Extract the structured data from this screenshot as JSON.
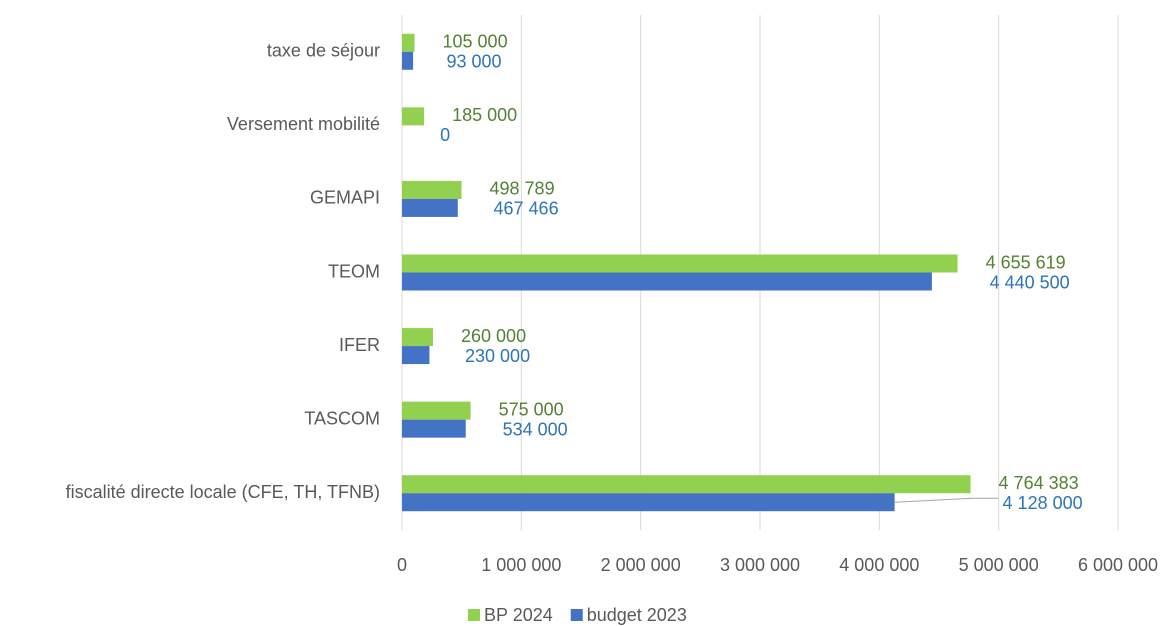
{
  "chart_data": {
    "type": "bar",
    "orientation": "horizontal",
    "categories": [
      "taxe de séjour",
      "Versement mobilité",
      "GEMAPI",
      "TEOM",
      "IFER",
      "TASCOM",
      "fiscalité directe locale (CFE, TH, TFNB)"
    ],
    "series": [
      {
        "name": "BP 2024",
        "color": "#92d050",
        "label_color": "#548235",
        "values": [
          105000,
          185000,
          498789,
          4655619,
          260000,
          575000,
          4764383
        ],
        "value_labels": [
          "105 000",
          "185 000",
          "498 789",
          "4 655 619",
          "260 000",
          "575 000",
          "4 764 383"
        ]
      },
      {
        "name": "budget 2023",
        "color": "#4472c4",
        "label_color": "#2e75b6",
        "values": [
          93000,
          0,
          467466,
          4440500,
          230000,
          534000,
          4128000
        ],
        "value_labels": [
          "93 000",
          "0",
          "467 466",
          "4 440 500",
          "230 000",
          "534 000",
          "4 128 000"
        ]
      }
    ],
    "xlim": [
      0,
      6000000
    ],
    "xticks": [
      0,
      {
        "value": 1000000,
        "label": "1 000 000"
      },
      {
        "value": 2000000,
        "label": "2 000 000"
      },
      {
        "value": 3000000,
        "label": "3 000 000"
      },
      {
        "value": 4000000,
        "label": "4 000 000"
      },
      {
        "value": 5000000,
        "label": "5 000 000"
      },
      {
        "value": 6000000,
        "label": "6 000 000"
      }
    ],
    "grid": true,
    "legend": "bottom"
  }
}
